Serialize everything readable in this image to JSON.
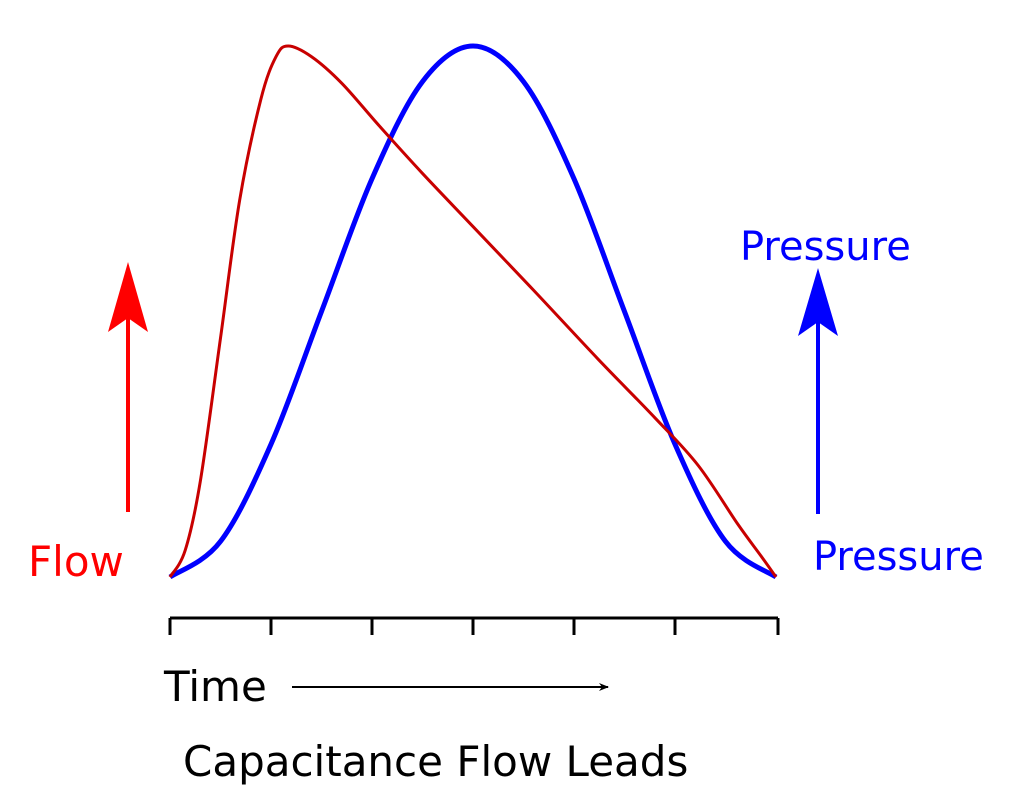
{
  "title": "Capacitance Flow Leads",
  "labels": {
    "flow": "Flow",
    "pressure_top": "Pressure",
    "pressure_right": "Pressure",
    "time": "Time"
  },
  "colors": {
    "flow_label": "#ff0000",
    "flow_curve": "#c80000",
    "pressure": "#0000ff",
    "axis": "#000000"
  },
  "chart_data": {
    "type": "line",
    "title": "Capacitance Flow Leads",
    "xlabel": "Time",
    "ylabel": "",
    "xlim": [
      0,
      6
    ],
    "ylim": [
      0,
      1
    ],
    "x_ticks": [
      0,
      1,
      2,
      3,
      4,
      5,
      6
    ],
    "series": [
      {
        "name": "Flow",
        "x": [
          0,
          0.15,
          0.3,
          0.5,
          0.69,
          0.9,
          1.05,
          1.17,
          1.4,
          1.7,
          2.07,
          2.5,
          3,
          3.6,
          4.24,
          4.8,
          5.23,
          5.62,
          5.85,
          6
        ],
        "y": [
          0,
          0.05,
          0.18,
          0.45,
          0.71,
          0.9,
          0.98,
          1.0,
          0.98,
          0.93,
          0.85,
          0.76,
          0.66,
          0.54,
          0.41,
          0.3,
          0.21,
          0.1,
          0.04,
          0
        ]
      },
      {
        "name": "Pressure",
        "x": [
          0,
          0.5,
          1,
          1.5,
          2,
          2.5,
          3,
          3.5,
          4,
          4.5,
          5,
          5.5,
          6
        ],
        "y": [
          0,
          0.067,
          0.25,
          0.5,
          0.75,
          0.933,
          1,
          0.933,
          0.75,
          0.5,
          0.25,
          0.067,
          0
        ]
      }
    ]
  }
}
